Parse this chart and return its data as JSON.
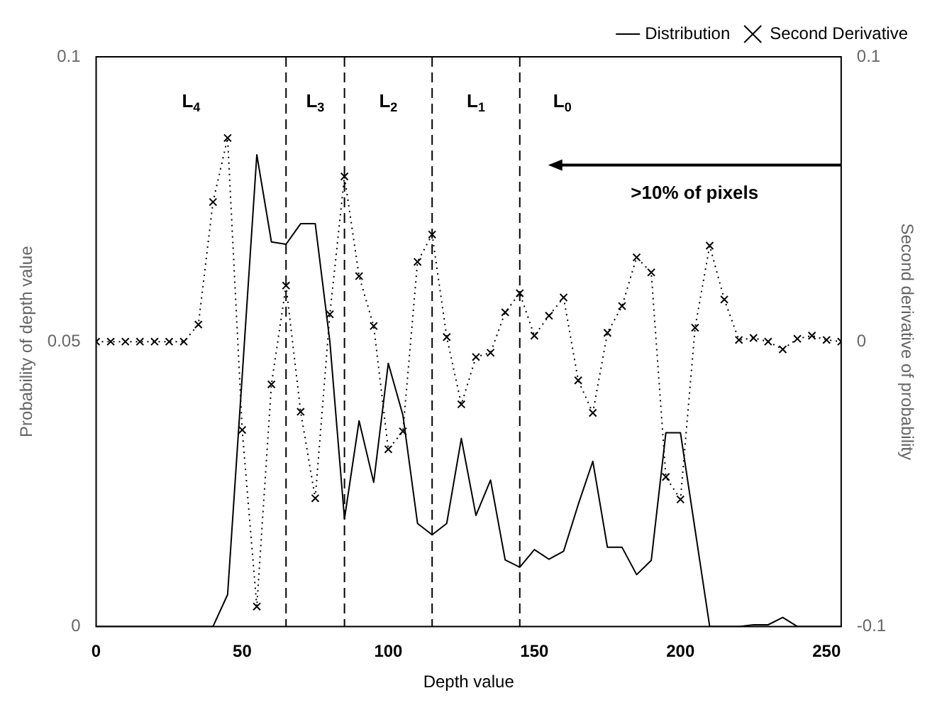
{
  "chart_data": {
    "type": "line",
    "xlabel": "Depth value",
    "ylabel": "Probability of depth value",
    "y2label": "Second derivative of probability",
    "x": [
      0,
      5,
      10,
      15,
      20,
      25,
      30,
      35,
      40,
      45,
      50,
      55,
      60,
      65,
      70,
      75,
      80,
      85,
      90,
      95,
      100,
      105,
      110,
      115,
      120,
      125,
      130,
      135,
      140,
      145,
      150,
      155,
      160,
      165,
      170,
      175,
      180,
      185,
      190,
      195,
      200,
      205,
      210,
      215,
      220,
      225,
      230,
      235,
      240,
      245,
      250,
      255
    ],
    "series": [
      {
        "name": "Distribution",
        "color": "#000000",
        "marker": "none",
        "line_style": "solid",
        "values": [
          0,
          0,
          0,
          0,
          0,
          0,
          0,
          0,
          0,
          0.0056,
          0.044,
          0.0828,
          0.0675,
          0.0671,
          0.0707,
          0.0707,
          0.05,
          0.0189,
          0.0361,
          0.0253,
          0.0462,
          0.0371,
          0.0181,
          0.0161,
          0.0181,
          0.033,
          0.0195,
          0.0257,
          0.0117,
          0.0104,
          0.0135,
          0.0118,
          0.0132,
          0.0214,
          0.029,
          0.0139,
          0.0139,
          0.0091,
          0.0116,
          0.034,
          0.034,
          0.017,
          0,
          0,
          0,
          0.0003,
          0.0003,
          0.0016,
          0,
          0,
          0,
          0
        ]
      },
      {
        "name": "Second Derivative",
        "color": "#000000",
        "axis": "y2",
        "marker": "cross",
        "line_style": "dotted",
        "values": [
          0,
          0,
          0,
          0,
          0,
          0,
          0,
          0.006,
          0.049,
          0.0715,
          -0.031,
          -0.093,
          -0.015,
          0.0197,
          -0.0246,
          -0.055,
          0.0096,
          0.058,
          0.023,
          0.0055,
          -0.0378,
          -0.0315,
          0.028,
          0.0376,
          0.0016,
          -0.022,
          -0.0054,
          -0.0039,
          0.0103,
          0.017,
          0.0021,
          0.0091,
          0.0155,
          -0.0136,
          -0.025,
          0.0031,
          0.0125,
          0.0296,
          0.0243,
          -0.0475,
          -0.0554,
          0.0049,
          0.0337,
          0.0148,
          0.0006,
          0.0013,
          0,
          -0.0027,
          0.001,
          0.0021,
          0.0006,
          0
        ]
      }
    ],
    "xlim": [
      0,
      255
    ],
    "xticks": [
      0,
      50,
      100,
      150,
      200,
      250
    ],
    "ylim": [
      0,
      0.1
    ],
    "yticks": [
      0,
      0.05,
      0.1
    ],
    "y2lim": [
      -0.1,
      0.1
    ],
    "y2ticks": [
      -0.1,
      0,
      0.1
    ],
    "ref_lines": [
      {
        "axis": "x",
        "value": 65,
        "line_style": "dashed"
      },
      {
        "axis": "x",
        "value": 85,
        "line_style": "dashed"
      },
      {
        "axis": "x",
        "value": 115,
        "line_style": "dashed"
      },
      {
        "axis": "x",
        "value": 145,
        "line_style": "dashed"
      }
    ],
    "annotations": [
      "L$_{4}$",
      "L$_{3}$",
      "L$_{2}$",
      "L$_{1}$",
      "L$_{0}$",
      ">10% of pixels"
    ],
    "legend": "top right",
    "grid": false
  }
}
